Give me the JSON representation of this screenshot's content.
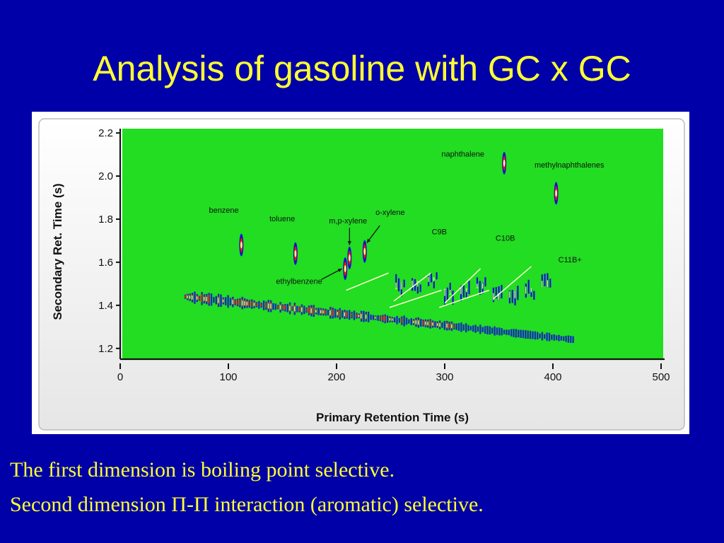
{
  "slide": {
    "title": "Analysis of gasoline with GC x GC",
    "captions": [
      "The first dimension is boiling point selective.",
      "Second dimension Π-Π interaction (aromatic) selective."
    ]
  },
  "chart_data": {
    "type": "heatmap",
    "title": "",
    "xlabel": "Primary Retention Time (s)",
    "ylabel": "Secondary Ret. Time (s)",
    "xlim": [
      0,
      500
    ],
    "ylim": [
      1.15,
      2.22
    ],
    "x_ticks": [
      "0",
      "100",
      "200",
      "300",
      "400",
      "500"
    ],
    "y_ticks": [
      "1.2",
      "1.4",
      "1.6",
      "1.8",
      "2.0",
      "2.2"
    ],
    "x_tick_values": [
      0,
      100,
      200,
      300,
      400,
      500
    ],
    "y_tick_values": [
      1.2,
      1.4,
      1.6,
      1.8,
      2.0,
      2.2
    ],
    "grid": false,
    "colors": {
      "background": "#22dd22",
      "frame": "#f8f8f8",
      "low": "#1111cc",
      "mid": "#ee1111",
      "high": "#ffffaa",
      "group_line": "#ffffcc",
      "text": "#111111"
    },
    "peaks": [
      {
        "name": "benzene",
        "label_x": 82,
        "label_y": 1.83,
        "x": 112,
        "y": 1.68
      },
      {
        "name": "toluene",
        "label_x": 138,
        "label_y": 1.79,
        "x": 162,
        "y": 1.64
      },
      {
        "name": "m,p-xylene",
        "label_x": 193,
        "label_y": 1.78,
        "x": 212,
        "y": 1.62
      },
      {
        "name": "o-xylene",
        "label_x": 236,
        "label_y": 1.82,
        "x": 226,
        "y": 1.65
      },
      {
        "name": "ethylbenzene",
        "label_x": 144,
        "label_y": 1.5,
        "x": 208,
        "y": 1.57
      },
      {
        "name": "naphthalene",
        "label_x": 297,
        "label_y": 2.09,
        "x": 355,
        "y": 2.06
      },
      {
        "name": "methylnaphthalenes",
        "label_x": 383,
        "label_y": 2.04,
        "x": 403,
        "y": 1.92
      }
    ],
    "groups": [
      {
        "name": "C9B",
        "label_x": 288,
        "label_y": 1.73,
        "line": [
          [
            253,
            1.42
          ],
          [
            287,
            1.55
          ]
        ]
      },
      {
        "name": "C10B",
        "label_x": 347,
        "label_y": 1.7,
        "line": [
          [
            300,
            1.41
          ],
          [
            333,
            1.57
          ]
        ]
      },
      {
        "name": "C11B+",
        "label_x": 405,
        "label_y": 1.6,
        "line": [
          [
            345,
            1.43
          ],
          [
            380,
            1.58
          ]
        ]
      }
    ],
    "annotation_lines": [
      [
        [
          209,
          1.47
        ],
        [
          248,
          1.55
        ]
      ],
      [
        [
          249,
          1.39
        ],
        [
          297,
          1.47
        ]
      ],
      [
        [
          295,
          1.39
        ],
        [
          341,
          1.47
        ]
      ]
    ],
    "band": {
      "x_range": [
        60,
        420
      ],
      "y_start": 1.44,
      "y_end": 1.24
    }
  }
}
